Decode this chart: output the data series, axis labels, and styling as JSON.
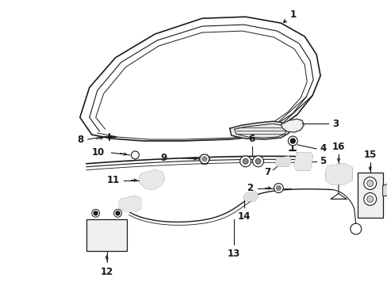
{
  "bg_color": "#ffffff",
  "line_color": "#1a1a1a",
  "fig_width": 4.89,
  "fig_height": 3.6,
  "dpi": 100,
  "label_fontsize": 8.5
}
